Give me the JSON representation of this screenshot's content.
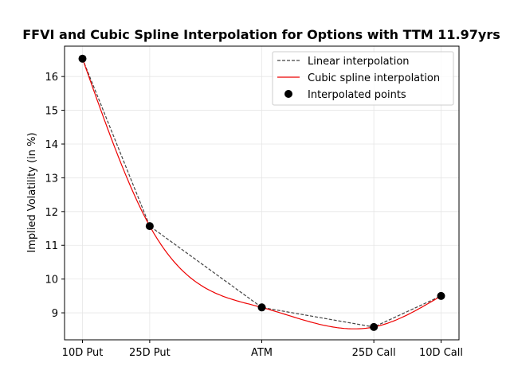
{
  "chart_data": {
    "type": "line",
    "title": "FFVI and Cubic Spline Interpolation for Options with TTM 11.97yrs",
    "xlabel": "",
    "ylabel": "Implied Volatility (in %)",
    "categories": [
      "10D Put",
      "25D Put",
      "ATM",
      "25D Call",
      "10D Call"
    ],
    "x_positions": [
      0.1,
      0.25,
      0.5,
      0.75,
      0.9
    ],
    "xlim": [
      0.06,
      0.94
    ],
    "ylim": [
      8.2,
      16.9
    ],
    "yticks": [
      9,
      10,
      11,
      12,
      13,
      14,
      15,
      16
    ],
    "grid": true,
    "legend_position": "top-right",
    "series": [
      {
        "name": "Linear interpolation",
        "style": "dashed",
        "color": "#444444",
        "values": [
          16.53,
          11.57,
          9.16,
          8.58,
          9.5
        ]
      },
      {
        "name": "Cubic spline interpolation",
        "style": "solid",
        "color": "#ee0000",
        "values": [
          16.53,
          11.57,
          9.16,
          8.58,
          9.5
        ]
      },
      {
        "name": "Interpolated points",
        "style": "markers",
        "color": "#000000",
        "values": [
          16.53,
          11.57,
          9.16,
          8.58,
          9.5
        ]
      }
    ]
  }
}
